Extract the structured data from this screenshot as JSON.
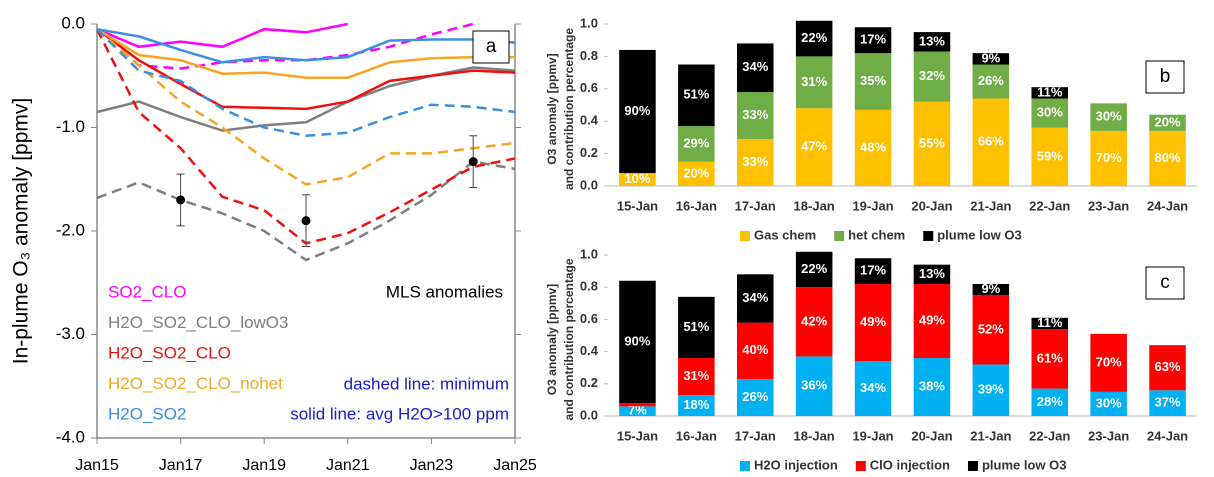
{
  "chart_data": [
    {
      "type": "line",
      "panel": "a",
      "ylabel": "In-plume O₃  anomaly [ppmv]",
      "x": [
        15,
        16,
        17,
        18,
        19,
        20,
        21,
        22,
        23,
        24,
        25
      ],
      "xlim": [
        15,
        25
      ],
      "xticks": [
        {
          "value": 15,
          "label": "Jan15"
        },
        {
          "value": 17,
          "label": "Jan17"
        },
        {
          "value": 19,
          "label": "Jan19"
        },
        {
          "value": 21,
          "label": "Jan21"
        },
        {
          "value": 23,
          "label": "Jan23"
        },
        {
          "value": 25,
          "label": "Jan25"
        }
      ],
      "ylim": [
        -4.0,
        0.0
      ],
      "yticks": [
        {
          "value": 0,
          "label": "0.0"
        },
        {
          "value": -1,
          "label": "-1.0"
        },
        {
          "value": -2,
          "label": "-2.0"
        },
        {
          "value": -3,
          "label": "-3.0"
        },
        {
          "value": -4,
          "label": "-4.0"
        }
      ],
      "series": [
        {
          "name": "SO2_CLO",
          "color": "#ff00ff",
          "avg": [
            -0.05,
            -0.22,
            -0.17,
            -0.22,
            -0.05,
            -0.08,
            0.0,
            null,
            null,
            null,
            null
          ],
          "min": [
            -0.05,
            -0.4,
            -0.43,
            -0.37,
            -0.35,
            -0.35,
            -0.3,
            -0.22,
            -0.1,
            0.0,
            null
          ]
        },
        {
          "name": "H2O_SO2_CLO_lowO3",
          "color": "#7f7f7f",
          "avg": [
            -0.85,
            -0.75,
            -0.9,
            -1.03,
            -0.98,
            -0.95,
            -0.75,
            -0.6,
            -0.5,
            -0.42,
            -0.45
          ],
          "min": [
            -1.68,
            -1.53,
            -1.7,
            -1.83,
            -2.0,
            -2.28,
            -2.12,
            -1.9,
            -1.65,
            -1.33,
            -1.4
          ]
        },
        {
          "name": "H2O_SO2_CLO",
          "color": "#ee1111",
          "avg": [
            -0.05,
            -0.35,
            -0.58,
            -0.8,
            -0.81,
            -0.82,
            -0.75,
            -0.55,
            -0.5,
            -0.45,
            -0.47
          ],
          "min": [
            -0.05,
            -0.85,
            -1.2,
            -1.67,
            -1.8,
            -2.12,
            -2.02,
            -1.82,
            -1.6,
            -1.38,
            -1.3
          ]
        },
        {
          "name": "H2O_SO2_CLO_nohet",
          "color": "#f5a623",
          "avg": [
            -0.05,
            -0.3,
            -0.35,
            -0.48,
            -0.47,
            -0.52,
            -0.52,
            -0.37,
            -0.33,
            -0.32,
            -0.32
          ],
          "min": [
            -0.05,
            -0.4,
            -0.75,
            -1.0,
            -1.3,
            -1.55,
            -1.48,
            -1.25,
            -1.25,
            -1.2,
            -1.15
          ]
        },
        {
          "name": "H2O_SO2",
          "color": "#3a8fe0",
          "avg": [
            -0.05,
            -0.12,
            -0.25,
            -0.37,
            -0.32,
            -0.35,
            -0.32,
            -0.16,
            -0.15,
            -0.15,
            -0.18
          ],
          "min": [
            -0.05,
            -0.45,
            -0.55,
            -0.82,
            -1.0,
            -1.08,
            -1.05,
            -0.9,
            -0.78,
            -0.8,
            -0.85
          ]
        }
      ],
      "mls": {
        "name": "MLS anomalies",
        "color": "#000000",
        "x": [
          17,
          20,
          24
        ],
        "values": [
          -1.7,
          -1.9,
          -1.33
        ],
        "errors": [
          0.25,
          0.25,
          0.25
        ]
      },
      "annotations": [
        {
          "text": "dashed line: minimum",
          "color": "#1a1ad6"
        },
        {
          "text": "solid line: avg H2O>100 ppm",
          "color": "#1a1ad6"
        }
      ]
    },
    {
      "type": "stacked_bar",
      "panel": "b",
      "ylabel": [
        "O3  anomaly [ppmv]",
        "and contribution percentage"
      ],
      "categories": [
        "15-Jan",
        "16-Jan",
        "17-Jan",
        "18-Jan",
        "19-Jan",
        "20-Jan",
        "21-Jan",
        "22-Jan",
        "23-Jan",
        "24-Jan"
      ],
      "ylim": [
        0,
        1.0
      ],
      "yticks": [
        {
          "value": 0,
          "label": "0.0"
        },
        {
          "value": 0.2,
          "label": "0.2"
        },
        {
          "value": 0.4,
          "label": "0.4"
        },
        {
          "value": 0.6,
          "label": "0.6"
        },
        {
          "value": 0.8,
          "label": "0.8"
        },
        {
          "value": 1.0,
          "label": "1.0"
        }
      ],
      "series": [
        {
          "name": "Gas chem",
          "color": "#ffc000",
          "values": [
            0.08,
            0.15,
            0.29,
            0.48,
            0.47,
            0.52,
            0.54,
            0.36,
            0.34,
            0.34
          ],
          "labels": [
            "10%",
            "20%",
            "33%",
            "47%",
            "48%",
            "55%",
            "66%",
            "59%",
            "70%",
            "80%"
          ]
        },
        {
          "name": "het chem",
          "color": "#70ad47",
          "values": [
            null,
            0.22,
            0.29,
            0.32,
            0.35,
            0.31,
            0.21,
            0.18,
            0.17,
            0.1
          ],
          "labels": [
            null,
            "29%",
            "33%",
            "31%",
            "35%",
            "32%",
            "26%",
            "30%",
            "30%",
            "20%"
          ]
        },
        {
          "name": "plume low O3",
          "color": "#000000",
          "values": [
            0.76,
            0.38,
            0.3,
            0.22,
            0.16,
            0.12,
            0.07,
            0.07,
            null,
            null
          ],
          "labels": [
            "90%",
            "51%",
            "34%",
            "22%",
            "17%",
            "13%",
            "9%",
            "11%",
            null,
            null
          ]
        }
      ]
    },
    {
      "type": "stacked_bar",
      "panel": "c",
      "ylabel": [
        "O3  anomaly [ppmv]",
        "and contribution percentage"
      ],
      "categories": [
        "15-Jan",
        "16-Jan",
        "17-Jan",
        "18-Jan",
        "19-Jan",
        "20-Jan",
        "21-Jan",
        "22-Jan",
        "23-Jan",
        "24-Jan"
      ],
      "ylim": [
        0,
        1.0
      ],
      "yticks": [
        {
          "value": 0,
          "label": "0.0"
        },
        {
          "value": 0.2,
          "label": "0.2"
        },
        {
          "value": 0.4,
          "label": "0.4"
        },
        {
          "value": 0.6,
          "label": "0.6"
        },
        {
          "value": 0.8,
          "label": "0.8"
        },
        {
          "value": 1.0,
          "label": "1.0"
        }
      ],
      "series": [
        {
          "name": "H2O injection",
          "color": "#00b0f0",
          "values": [
            0.06,
            0.13,
            0.23,
            0.37,
            0.34,
            0.36,
            0.32,
            0.17,
            0.15,
            0.16
          ],
          "labels": [
            "7%",
            "18%",
            "26%",
            "36%",
            "34%",
            "38%",
            "39%",
            "28%",
            "30%",
            "37%"
          ]
        },
        {
          "name": "ClO injection",
          "color": "#ff0000",
          "values": [
            0.02,
            0.23,
            0.35,
            0.43,
            0.48,
            0.46,
            0.43,
            0.37,
            0.36,
            0.28
          ],
          "labels": [
            null,
            "31%",
            "40%",
            "42%",
            "49%",
            "49%",
            "52%",
            "61%",
            "70%",
            "63%"
          ]
        },
        {
          "name": "plume low O3",
          "color": "#000000",
          "values": [
            0.76,
            0.38,
            0.3,
            0.22,
            0.16,
            0.12,
            0.07,
            0.07,
            null,
            null
          ],
          "labels": [
            "90%",
            "51%",
            "34%",
            "22%",
            "17%",
            "13%",
            "9%",
            "11%",
            null,
            null
          ]
        }
      ]
    }
  ]
}
